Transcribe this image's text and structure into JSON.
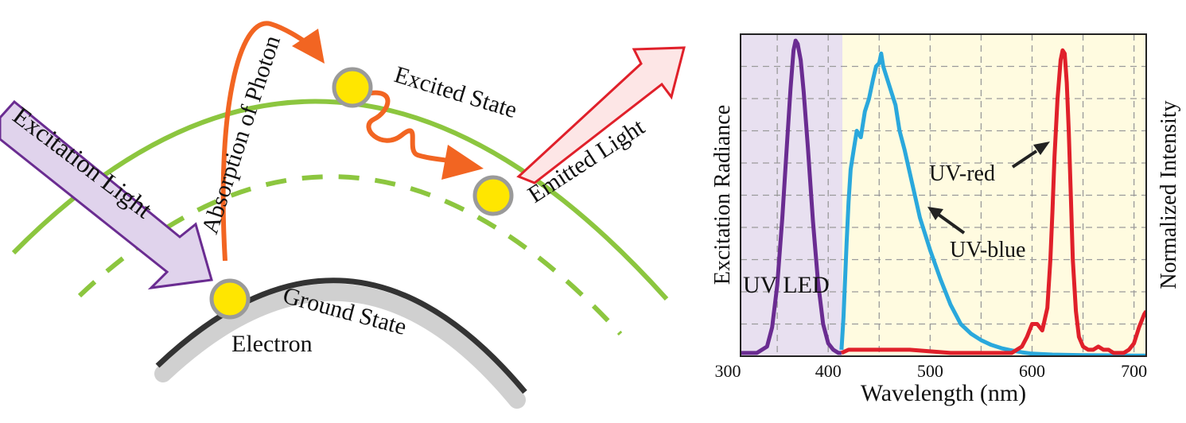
{
  "diagram": {
    "labels": {
      "excitation_light": "Excitation Light",
      "absorption_of_photon": "Absorption of Photon",
      "excited_state": "Excited State",
      "emitted_light": "Emitted Light",
      "ground_state": "Ground State",
      "electron": "Electron"
    },
    "colors": {
      "excited_orbit": "#8cc63f",
      "ground_orbit_dark": "#333333",
      "ground_orbit_shadow": "#d0d0d0",
      "excitation_arrow_fill": "#e0d3ec",
      "excitation_arrow_stroke": "#6a2c91",
      "absorption_arrow": "#f26522",
      "emitted_arrow_fill": "#fde6e6",
      "emitted_arrow_stroke": "#e0202a",
      "electron_fill": "#ffe600",
      "electron_stroke": "#9a9a9a"
    }
  },
  "chart_data": {
    "type": "line",
    "xlabel": "Wavelength (nm)",
    "ylabel_left": "Excitation Radiance",
    "ylabel_right": "Normalized Intensity",
    "xlim": [
      314,
      712
    ],
    "ylim": [
      0,
      1
    ],
    "x_ticks": [
      300,
      400,
      500,
      600,
      700
    ],
    "grid": true,
    "regions": [
      {
        "label": "UV LED",
        "x_range": [
          314,
          413
        ],
        "color": "#e8e0f0"
      },
      {
        "label": "",
        "x_range": [
          413,
          712
        ],
        "color": "#fffbe0"
      }
    ],
    "annotations": [
      "UV LED",
      "UV-red",
      "UV-blue"
    ],
    "series": [
      {
        "name": "UV LED",
        "color": "#6a2c91",
        "x": [
          314,
          330,
          340,
          345,
          350,
          355,
          360,
          363,
          366,
          368,
          370,
          373,
          376,
          380,
          385,
          390,
          395,
          400,
          405,
          410,
          413
        ],
        "y": [
          0.01,
          0.01,
          0.03,
          0.09,
          0.22,
          0.43,
          0.68,
          0.83,
          0.95,
          0.98,
          0.97,
          0.92,
          0.82,
          0.65,
          0.42,
          0.23,
          0.1,
          0.04,
          0.02,
          0.01,
          0.01
        ]
      },
      {
        "name": "UV-blue",
        "color": "#2aa8dc",
        "x": [
          413,
          415,
          418,
          420,
          422,
          425,
          428,
          432,
          436,
          440,
          444,
          447,
          450,
          452,
          454,
          458,
          462,
          466,
          470,
          475,
          480,
          485,
          490,
          500,
          510,
          520,
          530,
          540,
          550,
          560,
          570,
          580,
          590,
          600,
          620,
          650,
          700,
          712
        ],
        "y": [
          0.02,
          0.12,
          0.35,
          0.48,
          0.58,
          0.64,
          0.7,
          0.68,
          0.76,
          0.8,
          0.86,
          0.9,
          0.91,
          0.94,
          0.9,
          0.86,
          0.82,
          0.78,
          0.7,
          0.64,
          0.57,
          0.5,
          0.43,
          0.33,
          0.24,
          0.16,
          0.1,
          0.07,
          0.05,
          0.035,
          0.025,
          0.018,
          0.012,
          0.008,
          0.005,
          0.003,
          0.002,
          0.002
        ]
      },
      {
        "name": "UV-red",
        "color": "#e0202a",
        "x": [
          413,
          420,
          440,
          460,
          480,
          500,
          520,
          540,
          560,
          580,
          590,
          595,
          600,
          605,
          610,
          615,
          618,
          620,
          622,
          625,
          628,
          630,
          632,
          634,
          636,
          638,
          640,
          643,
          646,
          650,
          655,
          660,
          665,
          670,
          675,
          680,
          690,
          695,
          700,
          705,
          710,
          712
        ],
        "y": [
          0.01,
          0.02,
          0.02,
          0.02,
          0.02,
          0.015,
          0.01,
          0.01,
          0.01,
          0.01,
          0.03,
          0.06,
          0.1,
          0.1,
          0.08,
          0.15,
          0.3,
          0.45,
          0.62,
          0.8,
          0.92,
          0.95,
          0.94,
          0.85,
          0.7,
          0.5,
          0.3,
          0.14,
          0.06,
          0.03,
          0.02,
          0.02,
          0.03,
          0.02,
          0.02,
          0.01,
          0.01,
          0.02,
          0.04,
          0.09,
          0.13,
          0.14
        ]
      }
    ]
  }
}
